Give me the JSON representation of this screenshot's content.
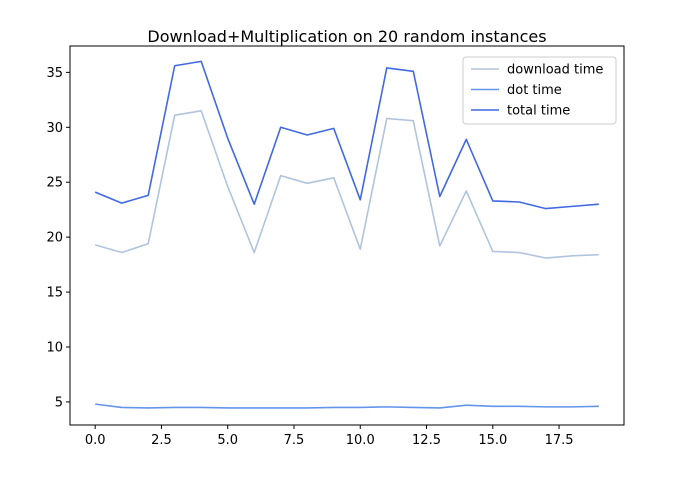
{
  "chart_data": {
    "type": "line",
    "title": "Download+Multiplication on 20 random instances",
    "xlabel": "",
    "ylabel": "",
    "x": [
      0,
      1,
      2,
      3,
      4,
      5,
      6,
      7,
      8,
      9,
      10,
      11,
      12,
      13,
      14,
      15,
      16,
      17,
      18,
      19
    ],
    "xlim": [
      -0.95,
      19.95
    ],
    "ylim": [
      2.9,
      37.4
    ],
    "xticks": [
      0,
      2.5,
      5,
      7.5,
      10,
      12.5,
      15,
      17.5
    ],
    "xtick_labels": [
      "0.0",
      "2.5",
      "5.0",
      "7.5",
      "10.0",
      "12.5",
      "15.0",
      "17.5"
    ],
    "yticks": [
      5,
      10,
      15,
      20,
      25,
      30,
      35
    ],
    "ytick_labels": [
      "5",
      "10",
      "15",
      "20",
      "25",
      "30",
      "35"
    ],
    "grid": false,
    "legend_position": "top-right",
    "series": [
      {
        "name": "download time",
        "color": "#b0c4de",
        "values": [
          19.3,
          18.6,
          19.4,
          31.1,
          31.5,
          24.6,
          18.6,
          25.6,
          24.9,
          25.4,
          18.9,
          30.8,
          30.6,
          19.2,
          24.2,
          18.7,
          18.6,
          18.1,
          18.3,
          18.4
        ]
      },
      {
        "name": "dot time",
        "color": "#6495ed",
        "values": [
          4.8,
          4.5,
          4.45,
          4.5,
          4.5,
          4.45,
          4.45,
          4.45,
          4.45,
          4.5,
          4.5,
          4.55,
          4.5,
          4.45,
          4.7,
          4.6,
          4.6,
          4.55,
          4.55,
          4.6
        ]
      },
      {
        "name": "total time",
        "color": "#4169e1",
        "values": [
          24.1,
          23.1,
          23.8,
          35.6,
          36.0,
          29.0,
          23.0,
          30.0,
          29.3,
          29.9,
          23.4,
          35.4,
          35.1,
          23.7,
          28.9,
          23.3,
          23.2,
          22.6,
          22.8,
          23.0
        ]
      }
    ]
  }
}
